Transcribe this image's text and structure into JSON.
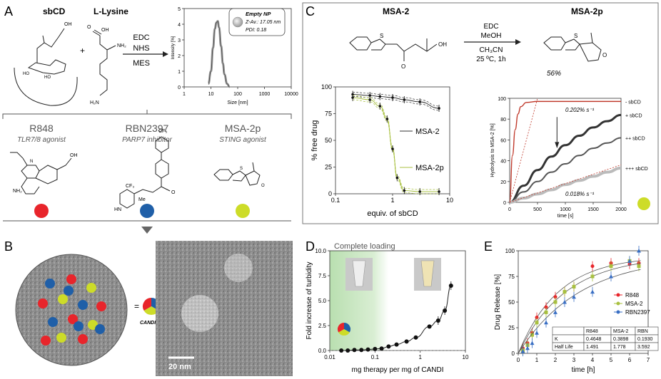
{
  "panels": {
    "A": {
      "letter": "A",
      "reagents": {
        "left": "sbCD",
        "right": "L-Lysine",
        "plus": "+",
        "cond1": "EDC",
        "cond2": "NHS",
        "cond3": "MES"
      },
      "lysine_labels": {
        "oh": "OH",
        "o": "O",
        "nh2": "NH₂",
        "h2n": "H₂N",
        "ho1": "HO",
        "ho2": "HO"
      },
      "dls": {
        "legend_title": "Empty NP",
        "legend_zav": "Z-Av.: 17.05 nm",
        "legend_pdi": "PDI: 0.18",
        "ylabel": "Intensity [%]",
        "xlabel": "Size [nm]"
      },
      "drugs": [
        {
          "name": "R848",
          "role": "TLR7/8 agonist",
          "color": "#e8252b"
        },
        {
          "name": "RBN2397",
          "role": "PARP7 inhibitor",
          "color": "#1f5fa8"
        },
        {
          "name": "MSA-2p",
          "role": "STING agonist",
          "color": "#cddc28"
        }
      ],
      "struct_labels": {
        "oh": "OH",
        "nh2": "NH₂",
        "n": "N",
        "cf3a": "CF₃",
        "cf3b": "CF₃",
        "hn": "HN",
        "me": "Me",
        "o": "O",
        "s": "S",
        "h": "H"
      }
    },
    "B": {
      "letter": "B",
      "equals": "=",
      "candi": "CANDI400",
      "scalebar": "20 nm"
    },
    "C": {
      "letter": "C",
      "left_title": "MSA-2",
      "right_title": "MSA-2p",
      "cond": [
        "EDC",
        "MeOH",
        "CH₃CN",
        "25 ºC, 1h"
      ],
      "yield": "56%",
      "struct_labels": {
        "oh": "OH",
        "s": "S",
        "o": "O"
      },
      "binding": {
        "ylabel": "% free drug",
        "xlabel": "equiv. of sbCD",
        "legend": [
          "MSA-2",
          "MSA-2p"
        ]
      },
      "hydrolysis": {
        "ylabel": "Hydrolysis to MSA-2 [%]",
        "xlabel": "time [s]",
        "rate_fast": "0.202% s⁻¹",
        "rate_slow": "0.018% s⁻¹",
        "curves": [
          "- sbCD",
          "+ sbCD",
          "++ sbCD",
          "+++ sbCD"
        ]
      }
    },
    "D": {
      "letter": "D",
      "banner": "Complete loading",
      "ylabel": "Fold increase of turbidity",
      "xlabel": "mg therapy per mg of CANDI"
    },
    "E": {
      "letter": "E",
      "ylabel": "Drug Release [%]",
      "xlabel": "time [h]",
      "legend": [
        "R848",
        "MSA-2",
        "RBN2397"
      ],
      "table": {
        "header": [
          "",
          "R848",
          "MSA-2",
          "RBN"
        ],
        "rows": [
          [
            "K",
            "0.4648",
            "0.3898",
            "0.1930"
          ],
          [
            "Half Life",
            "1.491",
            "1.778",
            "3.592"
          ]
        ]
      }
    }
  },
  "chart_data": [
    {
      "type": "line",
      "panel": "A",
      "xlabel": "Size [nm]",
      "ylabel": "Intensity [%]",
      "xscale": "log",
      "xlim": [
        1,
        10000
      ],
      "ylim": [
        0,
        5
      ],
      "xticks": [
        1,
        10,
        100,
        1000,
        10000
      ],
      "yticks": [
        0,
        1,
        2,
        3,
        4,
        5
      ],
      "series": [
        {
          "x": [
            8,
            10,
            12,
            14,
            16,
            18,
            20,
            24,
            28,
            32,
            40,
            50
          ],
          "values": [
            0.2,
            1.0,
            2.5,
            3.7,
            4.1,
            4.2,
            3.8,
            2.6,
            1.5,
            0.8,
            0.2,
            0.0
          ]
        }
      ]
    },
    {
      "type": "line",
      "panel": "C-binding",
      "xlabel": "equiv. of sbCD",
      "ylabel": "% free drug",
      "xscale": "log",
      "xlim": [
        0.1,
        10
      ],
      "ylim": [
        0,
        100
      ],
      "xticks": [
        0.1,
        1,
        10
      ],
      "yticks": [
        0,
        25,
        50,
        75,
        100
      ],
      "series": [
        {
          "name": "MSA-2",
          "x": [
            0.2,
            0.4,
            0.6,
            1.0,
            1.6,
            3.0,
            6.5
          ],
          "values": [
            93,
            92,
            91,
            90,
            88,
            86,
            80
          ]
        },
        {
          "name": "MSA-2p",
          "x": [
            0.2,
            0.4,
            0.6,
            0.8,
            1.0,
            1.2,
            1.6,
            3.0,
            6.5
          ],
          "values": [
            90,
            88,
            82,
            70,
            42,
            15,
            3,
            2,
            2
          ]
        }
      ]
    },
    {
      "type": "line",
      "panel": "C-hydrolysis",
      "xlabel": "time [s]",
      "ylabel": "Hydrolysis to MSA-2 [%]",
      "xlim": [
        0,
        2000
      ],
      "ylim": [
        0,
        100
      ],
      "xticks": [
        0,
        500,
        1000,
        1500,
        2000
      ],
      "yticks": [
        0,
        20,
        40,
        60,
        80,
        100
      ],
      "series": [
        {
          "name": "- sbCD",
          "x": [
            0,
            50,
            100,
            150,
            200,
            300,
            500,
            1000,
            2000
          ],
          "values": [
            0,
            45,
            70,
            85,
            92,
            96,
            97,
            97,
            97
          ]
        },
        {
          "name": "+ sbCD",
          "x": [
            0,
            250,
            500,
            750,
            1000,
            1250,
            1500,
            1750,
            2000
          ],
          "values": [
            0,
            16,
            31,
            44,
            55,
            64,
            72,
            78,
            84
          ]
        },
        {
          "name": "++ sbCD",
          "x": [
            0,
            250,
            500,
            750,
            1000,
            1250,
            1500,
            1750,
            2000
          ],
          "values": [
            0,
            10,
            20,
            29,
            37,
            45,
            52,
            57,
            62
          ]
        },
        {
          "name": "+++ sbCD",
          "x": [
            0,
            250,
            500,
            750,
            1000,
            1250,
            1500,
            1750,
            2000
          ],
          "values": [
            0,
            4,
            8,
            12,
            17,
            21,
            25,
            29,
            33
          ]
        }
      ]
    },
    {
      "type": "scatter",
      "panel": "D",
      "xlabel": "mg therapy per mg of CANDI",
      "ylabel": "Fold increase of turbidity",
      "xscale": "log",
      "xlim": [
        0.01,
        10
      ],
      "ylim": [
        0,
        10
      ],
      "xticks": [
        0.01,
        0.1,
        1,
        10
      ],
      "yticks": [
        0.0,
        2.5,
        5.0,
        7.5,
        10.0
      ],
      "series": [
        {
          "x": [
            0.018,
            0.025,
            0.035,
            0.05,
            0.07,
            0.1,
            0.14,
            0.2,
            0.3,
            0.5,
            0.8,
            1.6,
            2.5,
            3.5,
            4.8
          ],
          "values": [
            0.0,
            0.0,
            0.05,
            0.05,
            0.1,
            0.15,
            0.2,
            0.4,
            0.6,
            0.9,
            1.3,
            2.4,
            3.0,
            4.0,
            6.5
          ]
        }
      ]
    },
    {
      "type": "scatter",
      "panel": "E",
      "xlabel": "time [h]",
      "ylabel": "Drug Release [%]",
      "xlim": [
        0,
        7
      ],
      "ylim": [
        0,
        100
      ],
      "xticks": [
        0,
        1,
        2,
        3,
        4,
        5,
        6,
        7
      ],
      "yticks": [
        0,
        25,
        50,
        75,
        100
      ],
      "series": [
        {
          "name": "R848",
          "x": [
            0.25,
            0.5,
            0.75,
            1.0,
            1.5,
            2.0,
            2.5,
            3.0,
            4.0,
            5.0,
            6.0,
            6.5
          ],
          "values": [
            5,
            10,
            20,
            35,
            45,
            55,
            60,
            65,
            85,
            88,
            87,
            88
          ]
        },
        {
          "name": "MSA-2",
          "x": [
            0.25,
            0.5,
            0.75,
            1.0,
            1.5,
            2.0,
            2.5,
            3.0,
            4.0,
            5.0,
            6.0,
            6.5
          ],
          "values": [
            3,
            8,
            18,
            30,
            40,
            50,
            60,
            65,
            75,
            85,
            90,
            85
          ]
        },
        {
          "name": "RBN2397",
          "x": [
            0.25,
            0.5,
            0.75,
            1.0,
            1.5,
            2.0,
            2.5,
            3.0,
            4.0,
            5.0,
            6.0,
            6.5
          ],
          "values": [
            2,
            5,
            10,
            20,
            30,
            40,
            50,
            55,
            60,
            75,
            90,
            100
          ]
        }
      ]
    }
  ]
}
